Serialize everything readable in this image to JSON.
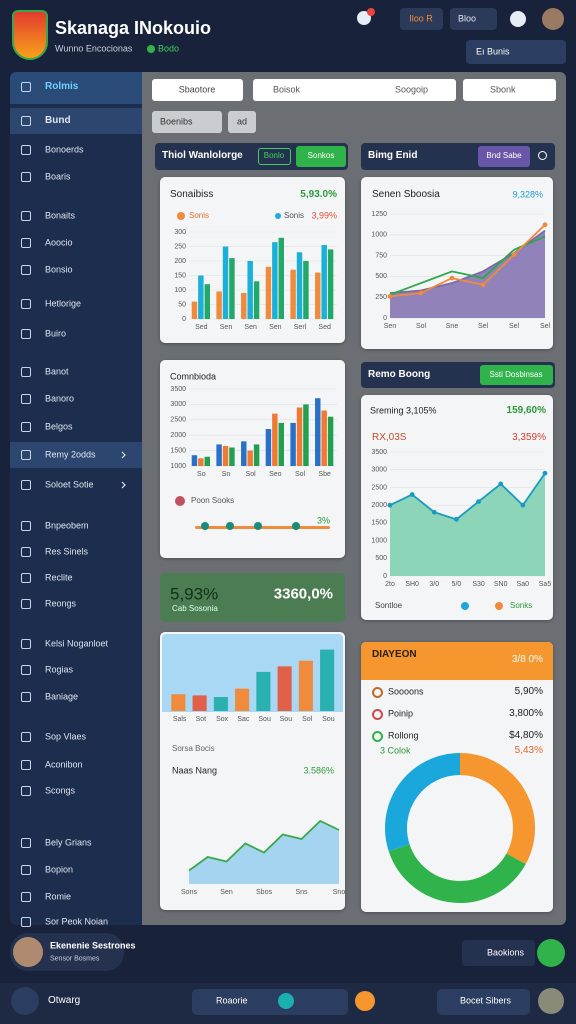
{
  "header": {
    "title": "Skanaga INokouio",
    "subtitle": "Wunno Encocionas",
    "tag": "Bodo",
    "buttons": [
      "Iloo R",
      "Bloo"
    ],
    "select": "Eı Bunis"
  },
  "sidebar": {
    "items": [
      "Rolmis",
      "Bund",
      "Bonoerds",
      "Boaris",
      "Bonaits",
      "Aoocio",
      "Bonsio",
      "Hetlorige",
      "Buiro",
      "Banot",
      "Banoro",
      "Belgos",
      "Remy 2odds",
      "Soloet Sotie",
      "Bnpeobem",
      "Res Sinels",
      "Reclite",
      "Reongs",
      "Kelsi Noganloet",
      "Rogias",
      "Baniage",
      "Sop Vlaes",
      "Aconibon",
      "Scongs",
      "Bely Grians",
      "Bopion",
      "Romie",
      "Sor Peok Noian"
    ]
  },
  "toolbar": {
    "tab": "Sbaotore",
    "search": "Boisok",
    "search_hint": "Soogoip",
    "search2": "Sbonk",
    "filter": "Boenibs",
    "button": "ad"
  },
  "sections": [
    {
      "title": "Thiol Wanlolorge",
      "badge": "Bonlo",
      "button": "Sonkos"
    },
    {
      "title": "Bimg Enid",
      "button": "Bnd Sabe"
    },
    {
      "title": "Remo Boong",
      "button": "Ssti Dosbinsas"
    }
  ],
  "charts": [
    {
      "type": "bar",
      "title": "Sonaibiss",
      "value": "5,93.0%",
      "legend": [
        "Sonis",
        "Sonis"
      ],
      "note": "3,99%",
      "categories": [
        "Sed",
        "Sen",
        "Sen",
        "Sen",
        "Serl",
        "Sed"
      ],
      "ylim": [
        0,
        300
      ],
      "yticks": [
        0,
        50,
        100,
        150,
        200,
        250,
        300
      ],
      "series": [
        {
          "color": "#f08a3c",
          "values": [
            60,
            95,
            90,
            180,
            170,
            160
          ]
        },
        {
          "color": "#1ab0d8",
          "values": [
            150,
            250,
            200,
            265,
            230,
            255
          ]
        },
        {
          "color": "#22a868",
          "values": [
            120,
            210,
            130,
            280,
            200,
            240
          ]
        }
      ]
    },
    {
      "type": "area",
      "title": "Senen Sboosia",
      "value": "9,328%",
      "categories": [
        "Sen",
        "Sol",
        "Sne",
        "Sel",
        "Sel",
        "Sel"
      ],
      "ylim": [
        0,
        1250
      ],
      "yticks": [
        0,
        250,
        500,
        750,
        1000,
        1250
      ],
      "series": [
        {
          "color": "#7b6aa8",
          "fill": "#8676b4",
          "values": [
            300,
            330,
            420,
            560,
            780,
            1050
          ]
        },
        {
          "color": "#2aa84a",
          "values": [
            280,
            420,
            560,
            480,
            820,
            980
          ]
        },
        {
          "color": "#f08a3c",
          "marker": true,
          "values": [
            260,
            300,
            480,
            400,
            760,
            1120
          ]
        }
      ]
    },
    {
      "type": "bar",
      "title": "Comnbioda",
      "legend": [
        "Poon Sooks"
      ],
      "note": "3%",
      "categories": [
        "So",
        "Sn",
        "Sol",
        "Seo",
        "Sol",
        "Sbe"
      ],
      "ylim": [
        1000,
        3500
      ],
      "yticks": [
        1000,
        1500,
        2000,
        2500,
        3000,
        3500
      ],
      "series": [
        {
          "color": "#2a6fc8",
          "values": [
            1350,
            1700,
            1800,
            2200,
            2400,
            3200
          ]
        },
        {
          "color": "#f07a34",
          "values": [
            1250,
            1650,
            1500,
            2700,
            2900,
            2800
          ]
        },
        {
          "color": "#22a050",
          "values": [
            1300,
            1600,
            1700,
            2400,
            3000,
            2600
          ]
        }
      ]
    },
    {
      "type": "area",
      "title": "Sreming 3,105%",
      "value": "159,60%",
      "subtitle": "RX,03S",
      "value2": "3,359%",
      "footer": [
        "Sontloe",
        "Sonks"
      ],
      "categories": [
        "2to",
        "SH0",
        "3/0",
        "5/0",
        "S30",
        "SN0",
        "Sa0",
        "Sa5"
      ],
      "ylim": [
        0,
        3500
      ],
      "yticks": [
        0,
        500,
        1000,
        1500,
        2000,
        2500,
        3000,
        3500
      ],
      "series": [
        {
          "color": "#1a9ac0",
          "fill": "#82d2b2",
          "marker": true,
          "values": [
            2000,
            2300,
            1800,
            1600,
            2100,
            2600,
            2000,
            2900
          ]
        }
      ]
    },
    {
      "type": "bar",
      "caption": "Sorsa Bocis",
      "categories": [
        "Sals",
        "Sot",
        "Sox",
        "Sac",
        "Sou",
        "Sou",
        "Sol",
        "Sou"
      ],
      "ylim": [
        0,
        120
      ],
      "series": [
        {
          "colors": [
            "#f08a3c",
            "#e0604a",
            "#2ab0b0",
            "#f08a3c",
            "#2ab0b0",
            "#e0604a",
            "#f08a3c",
            "#2ab0b0"
          ],
          "values": [
            30,
            28,
            25,
            40,
            70,
            80,
            90,
            110
          ]
        }
      ]
    },
    {
      "type": "area",
      "title": "Naas Nang",
      "value": "3.586%",
      "categories": [
        "Sons",
        null,
        "Sen",
        null,
        "Sbos",
        null,
        "Sns",
        null,
        "Sno"
      ],
      "ylim": [
        0,
        100
      ],
      "series": [
        {
          "color": "#3aa84a",
          "fill": "#9cd0f0",
          "values": [
            15,
            30,
            25,
            45,
            35,
            55,
            50,
            70,
            60
          ]
        }
      ]
    },
    {
      "type": "donut",
      "values": [
        33,
        37,
        30
      ],
      "colors": [
        "#f5962f",
        "#2fb34a",
        "#1aa8dc"
      ]
    }
  ],
  "stat": {
    "value": "5,93%",
    "label": "Cab Sosonia",
    "value2": "3360,0%"
  },
  "breakdown": {
    "title": "DIAYEON",
    "value": "3/8 0%",
    "rows": [
      {
        "label": "Soooons",
        "value": "5,90%"
      },
      {
        "label": "Poinip",
        "value": "3,800%"
      },
      {
        "label": "Rollong",
        "value": "$4,80%"
      },
      {
        "label": "3 Colok",
        "value": "5,43%"
      }
    ]
  },
  "footer": {
    "user": "Ekenenie Sestrones",
    "user_role": "Sensor Bosmes",
    "button": "Baokions",
    "nav": "Otwarg",
    "pill": "Roaorie",
    "pill2": "Bocet Sibers"
  }
}
